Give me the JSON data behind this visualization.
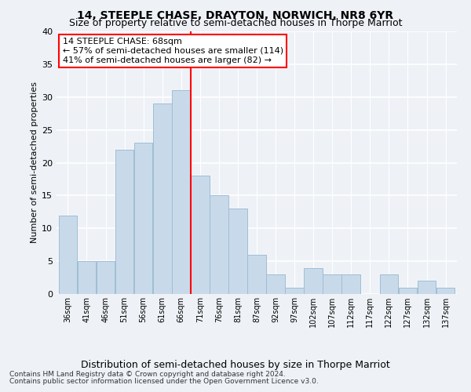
{
  "title": "14, STEEPLE CHASE, DRAYTON, NORWICH, NR8 6YR",
  "subtitle": "Size of property relative to semi-detached houses in Thorpe Marriot",
  "xlabel_bottom": "Distribution of semi-detached houses by size in Thorpe Marriot",
  "ylabel": "Number of semi-detached properties",
  "footer1": "Contains HM Land Registry data © Crown copyright and database right 2024.",
  "footer2": "Contains public sector information licensed under the Open Government Licence v3.0.",
  "annotation_line1": "14 STEEPLE CHASE: 68sqm",
  "annotation_line2": "← 57% of semi-detached houses are smaller (114)",
  "annotation_line3": "41% of semi-detached houses are larger (82) →",
  "bar_color": "#c8daea",
  "bar_edge_color": "#a0bdd4",
  "marker_line_color": "red",
  "categories": [
    "36sqm",
    "41sqm",
    "46sqm",
    "51sqm",
    "56sqm",
    "61sqm",
    "66sqm",
    "71sqm",
    "76sqm",
    "81sqm",
    "87sqm",
    "92sqm",
    "97sqm",
    "102sqm",
    "107sqm",
    "112sqm",
    "117sqm",
    "122sqm",
    "127sqm",
    "132sqm",
    "137sqm"
  ],
  "values": [
    12,
    5,
    5,
    22,
    23,
    29,
    31,
    18,
    15,
    13,
    6,
    3,
    1,
    4,
    3,
    3,
    0,
    3,
    1,
    2,
    1
  ],
  "ylim": [
    0,
    40
  ],
  "yticks": [
    0,
    5,
    10,
    15,
    20,
    25,
    30,
    35,
    40
  ],
  "bg_color": "#eef2f7",
  "grid_color": "#ffffff",
  "title_fontsize": 10,
  "subtitle_fontsize": 9,
  "annotation_fontsize": 8,
  "footer_fontsize": 6.5,
  "xlabel_bottom_fontsize": 9
}
